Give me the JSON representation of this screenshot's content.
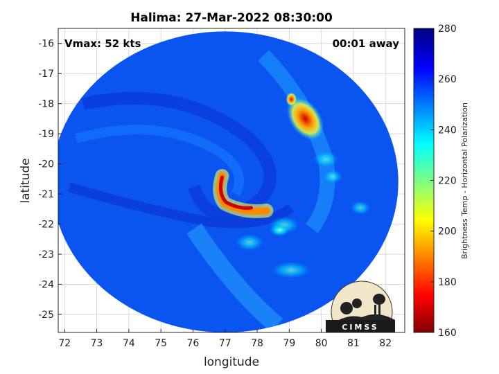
{
  "chart_data": {
    "type": "heatmap",
    "title": "Halima: 27-Mar-2022 08:30:00",
    "xlabel": "longitude",
    "ylabel": "latitude",
    "xlim": [
      71.8,
      82.6
    ],
    "ylim": [
      -25.6,
      -15.5
    ],
    "x_ticks": [
      72,
      73,
      74,
      75,
      76,
      77,
      78,
      79,
      80,
      81,
      82
    ],
    "y_ticks": [
      -16,
      -17,
      -18,
      -19,
      -20,
      -21,
      -22,
      -23,
      -24,
      -25
    ],
    "grid": true,
    "annotations": {
      "vmax": "Vmax: 52 kts",
      "away": "00:01 away"
    },
    "colorbar": {
      "label": "Brightness Temp - Horizontal Polarization",
      "min": 160,
      "max": 280,
      "ticks": [
        160,
        180,
        200,
        220,
        240,
        260,
        280
      ],
      "colormap": "jet"
    },
    "swath": {
      "center_lon": 77.0,
      "center_lat": -20.6,
      "lon_radius": 5.4,
      "lat_radius": 5.0,
      "background_value": 258
    },
    "features": [
      {
        "type": "eyewall",
        "lon": 76.95,
        "lat": -21.0,
        "min_value": 165
      },
      {
        "type": "rainband",
        "lon": 79.5,
        "lat": -18.5,
        "min_value": 175
      },
      {
        "type": "outer-band",
        "lon": 78.7,
        "lat": -22.2,
        "min_value": 235
      }
    ],
    "logo": "CIMSS"
  },
  "colors": {
    "background": "#ffffff",
    "grid": "#d9d9d9",
    "axis": "#222222"
  }
}
